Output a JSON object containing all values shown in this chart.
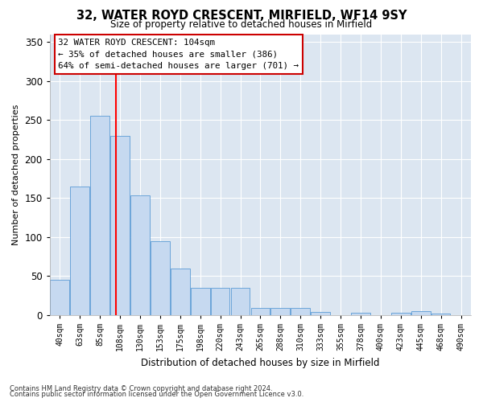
{
  "title1": "32, WATER ROYD CRESCENT, MIRFIELD, WF14 9SY",
  "title2": "Size of property relative to detached houses in Mirfield",
  "xlabel": "Distribution of detached houses by size in Mirfield",
  "ylabel": "Number of detached properties",
  "bar_labels": [
    "40sqm",
    "63sqm",
    "85sqm",
    "108sqm",
    "130sqm",
    "153sqm",
    "175sqm",
    "198sqm",
    "220sqm",
    "243sqm",
    "265sqm",
    "288sqm",
    "310sqm",
    "333sqm",
    "355sqm",
    "378sqm",
    "400sqm",
    "423sqm",
    "445sqm",
    "468sqm",
    "490sqm"
  ],
  "bar_values": [
    45,
    165,
    255,
    230,
    153,
    95,
    60,
    35,
    35,
    35,
    9,
    9,
    9,
    4,
    0,
    3,
    0,
    3,
    5,
    2,
    0
  ],
  "bar_color": "#c6d9f0",
  "bar_edge_color": "#5b9bd5",
  "plot_bg_color": "#dce6f1",
  "fig_bg_color": "#ffffff",
  "grid_color": "#ffffff",
  "red_line_x": 2.78,
  "annotation_text": "32 WATER ROYD CRESCENT: 104sqm\n← 35% of detached houses are smaller (386)\n64% of semi-detached houses are larger (701) →",
  "annotation_box_color": "#ffffff",
  "annotation_box_edge": "#cc0000",
  "footnote1": "Contains HM Land Registry data © Crown copyright and database right 2024.",
  "footnote2": "Contains public sector information licensed under the Open Government Licence v3.0.",
  "ylim": [
    0,
    360
  ],
  "yticks": [
    0,
    50,
    100,
    150,
    200,
    250,
    300,
    350
  ]
}
